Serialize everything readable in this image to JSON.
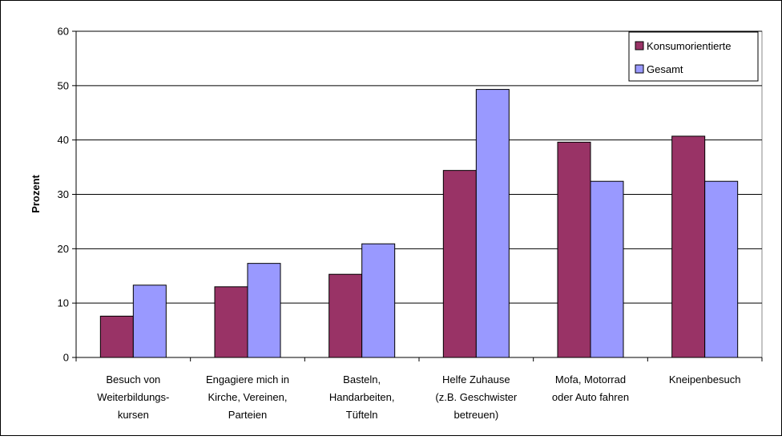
{
  "chart_data": {
    "type": "bar",
    "title": "",
    "xlabel": "",
    "ylabel": "Prozent",
    "ylim": [
      0,
      60
    ],
    "yticks": [
      0,
      10,
      20,
      30,
      40,
      50,
      60
    ],
    "grid": true,
    "legend_position": "top-right",
    "categories": [
      [
        "Besuch von",
        "Weiterbildungs-",
        "kursen"
      ],
      [
        "Engagiere mich in",
        "Kirche, Vereinen,",
        "Parteien"
      ],
      [
        "Basteln,",
        "Handarbeiten,",
        "Tüfteln"
      ],
      [
        "Helfe Zuhause",
        "(z.B. Geschwister",
        "betreuen)"
      ],
      [
        "Mofa, Motorrad",
        "oder Auto fahren"
      ],
      [
        "Kneipenbesuch"
      ]
    ],
    "series": [
      {
        "name": "Konsumorientierte",
        "color": "#993366",
        "values": [
          7.6,
          13.0,
          15.3,
          34.4,
          39.6,
          40.7
        ]
      },
      {
        "name": "Gesamt",
        "color": "#9999FF",
        "values": [
          13.3,
          17.3,
          20.9,
          49.3,
          32.4,
          32.4
        ]
      }
    ]
  }
}
